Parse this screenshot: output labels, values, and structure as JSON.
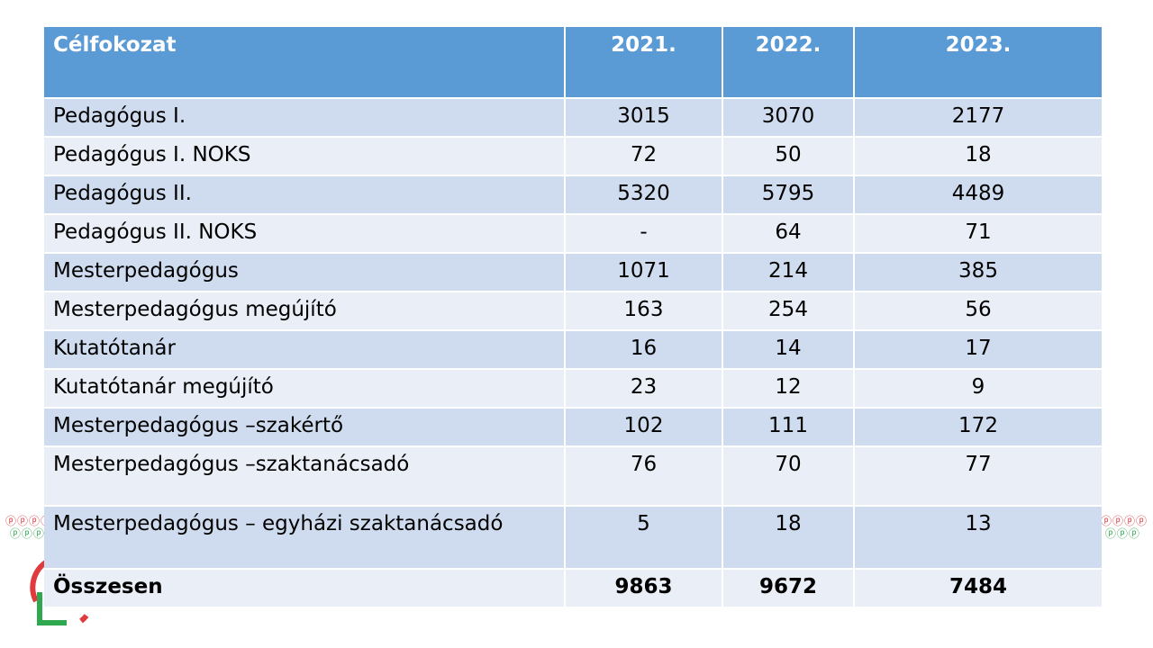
{
  "table": {
    "headers": [
      "Célfokozat",
      "2021.",
      "2022.",
      "2023."
    ],
    "rows": [
      [
        "Pedagógus I.",
        "3015",
        "3070",
        "2177"
      ],
      [
        "Pedagógus I. NOKS",
        "72",
        "50",
        "18"
      ],
      [
        "Pedagógus II.",
        "5320",
        "5795",
        "4489"
      ],
      [
        "Pedagógus II. NOKS",
        "-",
        "64",
        "71"
      ],
      [
        "Mesterpedagógus",
        "1071",
        "214",
        "385"
      ],
      [
        "Mesterpedagógus megújító",
        "163",
        "254",
        "56"
      ],
      [
        "Kutatótanár",
        "16",
        "14",
        "17"
      ],
      [
        "Kutatótanár megújító",
        "23",
        "12",
        "9"
      ],
      [
        "Mesterpedagógus –szakértő",
        "102",
        "111",
        "172"
      ],
      [
        "Mesterpedagógus –szaktanácsadó",
        "76",
        "70",
        "77"
      ],
      [
        "Mesterpedagógus – egyházi szaktanácsadó",
        "5",
        "18",
        "13"
      ]
    ],
    "total": [
      "Összesen",
      "9863",
      "9672",
      "7484"
    ]
  },
  "colors": {
    "header_bg": "#5b9bd5",
    "row_dark": "#cfdcef",
    "row_light": "#e9eef7",
    "logo_red": "#e0393e",
    "logo_green": "#2fa84f"
  }
}
